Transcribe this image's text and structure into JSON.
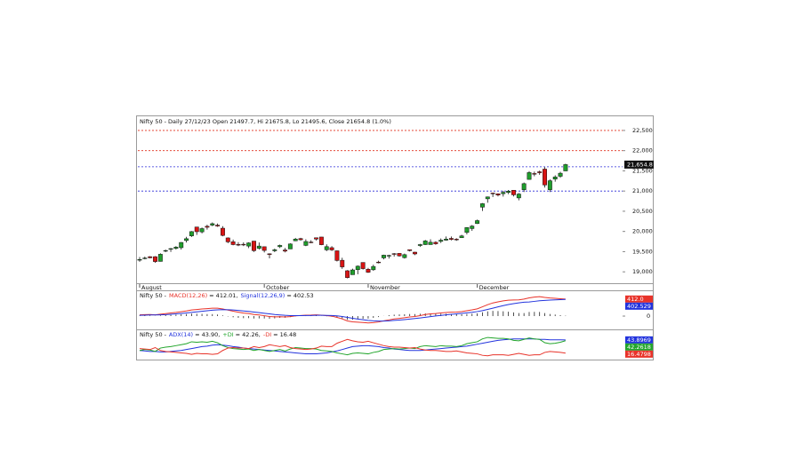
{
  "chart_data": [
    {
      "type": "candlestick",
      "title": "Nifty 50 - Daily 27/12/23 Open 21497.7, Hi 21675.8, Lo 21495.6, Close 21654.8 (1.0%)",
      "categories": [
        "August",
        null,
        null,
        null,
        null,
        null,
        null,
        null,
        null,
        null,
        null,
        null,
        null,
        null,
        null,
        null,
        null,
        null,
        null,
        null,
        null,
        null,
        null,
        null,
        "October",
        null,
        null,
        null,
        null,
        null,
        null,
        null,
        null,
        null,
        null,
        null,
        null,
        null,
        null,
        null,
        null,
        null,
        null,
        null,
        "November",
        null,
        null,
        null,
        null,
        null,
        null,
        null,
        null,
        null,
        null,
        null,
        null,
        null,
        null,
        null,
        null,
        null,
        null,
        null,
        null,
        "December",
        null,
        null,
        null,
        null,
        null,
        null,
        null,
        null,
        null,
        null,
        null,
        null,
        null,
        null,
        null,
        null,
        null
      ],
      "open": [
        19298,
        19326,
        19375,
        19375,
        19258,
        19525,
        19564,
        19580,
        19598,
        19775,
        19890,
        20110,
        19989,
        20127,
        20156,
        20156,
        20080,
        19840,
        19744,
        19679,
        19682,
        19638,
        19761,
        19581,
        19622,
        19446,
        19521,
        19621,
        19540,
        19566,
        19767,
        19823,
        19654,
        19737,
        19843,
        19862,
        19545,
        19598,
        19521,
        19286,
        19027,
        18929,
        19054,
        19232,
        19064,
        19051,
        19241,
        19345,
        19405,
        19450,
        19457,
        19351,
        19548,
        19487,
        19651,
        19674,
        19674,
        19731,
        19754,
        19784,
        19828,
        19809,
        19844,
        19976,
        20071,
        20195,
        20601,
        20808,
        20950,
        20932,
        20935,
        20966,
        21019,
        20830,
        21033,
        21287,
        21434,
        21477,
        21543,
        21033,
        21295,
        21365,
        21497.7
      ],
      "high": [
        19367,
        19377,
        19388,
        19388,
        19458,
        19550,
        19588,
        19637,
        19737,
        19867,
        20008,
        20110,
        20096,
        20167,
        20222,
        20195,
        20130,
        19853,
        19798,
        19735,
        19729,
        19731,
        19766,
        19726,
        19623,
        19458,
        19576,
        19675,
        19588,
        19705,
        19840,
        19843,
        19806,
        19782,
        19849,
        19864,
        19681,
        19636,
        19525,
        19348,
        19042,
        19077,
        19159,
        19233,
        19096,
        19176,
        19276,
        19423,
        19423,
        19464,
        19464,
        19451,
        19548,
        19495,
        19693,
        19790,
        19806,
        19756,
        19826,
        19875,
        19875,
        19832,
        19916,
        20105,
        20158,
        20291,
        20702,
        20864,
        20961,
        20941,
        21006,
        21026,
        21020,
        20950,
        21210,
        21493,
        21482,
        21505,
        21593,
        21289,
        21390,
        21477,
        21675.8
      ],
      "low": [
        19249,
        19309,
        19334,
        19224,
        19255,
        19488,
        19493,
        19551,
        19550,
        19727,
        19865,
        19914,
        19952,
        20044,
        20129,
        20115,
        19879,
        19709,
        19657,
        19635,
        19637,
        19587,
        19492,
        19551,
        19480,
        19333,
        19487,
        19589,
        19481,
        19565,
        19760,
        19772,
        19636,
        19707,
        19775,
        19659,
        19512,
        19518,
        19257,
        19074,
        18838,
        18926,
        18940,
        19056,
        18974,
        19026,
        19210,
        19309,
        19329,
        19378,
        19378,
        19329,
        19505,
        19414,
        19617,
        19666,
        19673,
        19670,
        19714,
        19769,
        19779,
        19768,
        19839,
        19926,
        20015,
        20184,
        20507,
        20711,
        20852,
        20867,
        20863,
        20923,
        20867,
        20770,
        20976,
        21287,
        21365,
        21402,
        21087,
        20976,
        21232,
        21329,
        21495.6
      ],
      "close": [
        19306,
        19342,
        19347,
        19254,
        19435,
        19528,
        19575,
        19611,
        19727,
        19820,
        19996,
        19993,
        20070,
        20103,
        20192,
        20133,
        19901,
        19742,
        19674,
        19675,
        19665,
        19716,
        19524,
        19638,
        19529,
        19436,
        19545,
        19654,
        19512,
        19690,
        19811,
        19794,
        19751,
        19731,
        19811,
        19671,
        19624,
        19542,
        19281,
        19122,
        18857,
        19047,
        19140,
        19079,
        18989,
        19133,
        19231,
        19412,
        19406,
        19443,
        19395,
        19425,
        19525,
        19443,
        19675,
        19765,
        19732,
        19694,
        19783,
        19811,
        19802,
        19795,
        19889,
        20096,
        20133,
        20268,
        20687,
        20855,
        20937,
        20901,
        20969,
        20997,
        20906,
        20926,
        21183,
        21457,
        21419,
        21453,
        21150,
        21255,
        21349,
        21441,
        21654.8
      ],
      "up_color": "#1f9e2c",
      "down_color": "#d81414",
      "ylim": [
        18740,
        22850
      ],
      "yticks": [
        {
          "value": 22500,
          "label": "22,500"
        },
        {
          "value": 22000,
          "label": "22,000"
        },
        {
          "value": 21500,
          "label": "21,500"
        },
        {
          "value": 21000,
          "label": "21,000"
        },
        {
          "value": 20500,
          "label": "20,500"
        },
        {
          "value": 20000,
          "label": "20,000"
        },
        {
          "value": 19500,
          "label": "19,500"
        },
        {
          "value": 19000,
          "label": "19,000"
        }
      ],
      "levels": [
        {
          "value": 22500,
          "color": "#e0301e"
        },
        {
          "value": 22000,
          "color": "#e0301e"
        },
        {
          "value": 21600,
          "color": "#2a2ad8"
        },
        {
          "value": 21000,
          "color": "#2a2ad8"
        }
      ],
      "last_marker": {
        "value": 21654.8,
        "label": "21,654.8"
      }
    },
    {
      "type": "macd",
      "title_prefix": "Nifty 50 -",
      "series": [
        {
          "name": "MACD(12,26)",
          "label": "= 412.01,",
          "color": "#e8332a",
          "values": [
            30,
            35,
            38,
            30,
            45,
            60,
            75,
            88,
            105,
            123,
            148,
            160,
            172,
            180,
            190,
            190,
            172,
            145,
            118,
            95,
            74,
            63,
            38,
            27,
            10,
            -10,
            -18,
            -15,
            -22,
            -12,
            5,
            15,
            21,
            24,
            30,
            22,
            12,
            -1,
            -31,
            -68,
            -118,
            -140,
            -148,
            -155,
            -165,
            -158,
            -143,
            -115,
            -92,
            -70,
            -55,
            -39,
            -20,
            -10,
            12,
            37,
            54,
            63,
            75,
            87,
            94,
            98,
            108,
            130,
            150,
            175,
            225,
            275,
            318,
            345,
            368,
            385,
            390,
            392,
            410,
            440,
            458,
            470,
            452,
            438,
            430,
            420,
            412.01
          ],
          "marker": {
            "value": 412.01,
            "label": "412.0"
          }
        },
        {
          "name": "Signal(12,26,9)",
          "label": "= 402.53",
          "color": "#2233dd",
          "values": [
            20,
            23,
            26,
            27,
            31,
            36,
            44,
            53,
            63,
            75,
            89,
            103,
            117,
            130,
            142,
            152,
            156,
            154,
            147,
            137,
            124,
            112,
            97,
            83,
            68,
            53,
            38,
            28,
            18,
            12,
            10,
            11,
            13,
            15,
            18,
            19,
            17,
            14,
            5,
            -10,
            -31,
            -53,
            -72,
            -89,
            -104,
            -115,
            -120,
            -119,
            -114,
            -105,
            -95,
            -84,
            -71,
            -59,
            -45,
            -28,
            -12,
            3,
            17,
            31,
            43,
            54,
            65,
            78,
            92,
            109,
            132,
            161,
            192,
            223,
            252,
            279,
            301,
            319,
            337,
            340,
            356,
            370,
            380,
            387,
            393,
            398,
            402.53
          ],
          "marker": {
            "value": 402.529,
            "label": "402.529"
          }
        }
      ],
      "histogram": [
        10,
        12,
        12,
        3,
        14,
        24,
        31,
        35,
        42,
        48,
        59,
        57,
        55,
        50,
        48,
        38,
        16,
        -9,
        -29,
        -42,
        -50,
        -49,
        -59,
        -56,
        -58,
        -63,
        -56,
        -43,
        -40,
        -24,
        -5,
        4,
        8,
        9,
        12,
        3,
        -5,
        -15,
        -36,
        -58,
        -87,
        -87,
        -76,
        -66,
        -61,
        -43,
        -23,
        4,
        22,
        35,
        40,
        45,
        51,
        49,
        57,
        65,
        66,
        60,
        58,
        56,
        51,
        44,
        43,
        52,
        58,
        66,
        93,
        114,
        126,
        122,
        116,
        106,
        89,
        73,
        73,
        100,
        102,
        100,
        72,
        51,
        37,
        22,
        9.48
      ],
      "histogram_color": "#222222",
      "ylim": [
        -300,
        580
      ],
      "yticks": [
        0
      ]
    },
    {
      "type": "adx",
      "title_prefix": "Nifty 50 -",
      "series": [
        {
          "name": "ADX(14)",
          "label": "= 43.90,",
          "color": "#2233dd",
          "values": [
            22,
            21,
            20,
            20,
            19,
            19,
            20,
            21,
            22,
            24,
            26,
            28,
            30,
            31,
            33,
            34,
            33,
            32,
            30,
            29,
            27,
            26,
            25,
            24,
            23,
            22,
            21,
            20,
            19,
            18,
            17,
            16,
            15,
            15,
            15,
            16,
            17,
            19,
            21,
            24,
            27,
            30,
            31,
            32,
            32,
            31,
            30,
            28,
            27,
            25,
            24,
            23,
            22,
            22,
            22,
            23,
            24,
            25,
            26,
            27,
            28,
            29,
            30,
            31,
            33,
            35,
            37,
            39,
            41,
            43,
            44,
            45,
            46,
            46,
            46,
            46,
            46,
            45,
            45,
            44,
            44,
            44,
            43.8969
          ],
          "marker": {
            "value": 43.8969,
            "label": "43.8969"
          }
        },
        {
          "name": "+DI",
          "label": "= 42.26,",
          "color": "#22a52c",
          "values": [
            22,
            24,
            23,
            20,
            27,
            29,
            30,
            32,
            34,
            36,
            40,
            39,
            40,
            39,
            41,
            38,
            32,
            28,
            26,
            25,
            24,
            25,
            22,
            24,
            22,
            20,
            22,
            24,
            21,
            25,
            28,
            27,
            26,
            26,
            25,
            22,
            21,
            20,
            17,
            15,
            13,
            16,
            17,
            16,
            15,
            18,
            20,
            24,
            25,
            26,
            25,
            26,
            27,
            26,
            30,
            32,
            31,
            30,
            32,
            31,
            31,
            30,
            32,
            36,
            38,
            40,
            46,
            49,
            48,
            47,
            47,
            46,
            43,
            42,
            45,
            48,
            46,
            45,
            38,
            36,
            37,
            39,
            42.2618
          ],
          "marker": {
            "value": 42.2618,
            "label": "42.2618"
          }
        },
        {
          "name": "-DI",
          "label": "= 16.48",
          "color": "#e8332a",
          "values": [
            26,
            25,
            24,
            28,
            22,
            20,
            19,
            18,
            17,
            16,
            14,
            16,
            15,
            15,
            14,
            15,
            22,
            27,
            28,
            27,
            27,
            26,
            30,
            28,
            30,
            34,
            32,
            30,
            32,
            28,
            26,
            25,
            24,
            25,
            27,
            31,
            30,
            30,
            37,
            41,
            45,
            42,
            40,
            39,
            41,
            38,
            35,
            32,
            30,
            29,
            29,
            28,
            27,
            28,
            25,
            23,
            22,
            22,
            21,
            20,
            20,
            21,
            19,
            17,
            16,
            15,
            12,
            11,
            13,
            13,
            13,
            12,
            14,
            16,
            14,
            12,
            13,
            13,
            18,
            20,
            19,
            18,
            16.4798
          ],
          "marker": {
            "value": 16.4798,
            "label": "16.4798"
          }
        }
      ],
      "ylim": [
        5,
        62
      ]
    }
  ]
}
